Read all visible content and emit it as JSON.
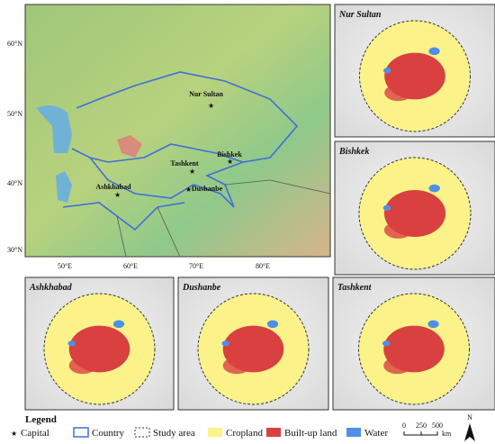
{
  "main_map": {
    "cities": [
      {
        "label": "Nur Sultan"
      },
      {
        "label": "Tashkent"
      },
      {
        "label": "Bishkek"
      },
      {
        "label": "Ashkhabad"
      },
      {
        "label": "Dushanbe"
      }
    ],
    "lat_labels": [
      "60°N",
      "50°N",
      "40°N",
      "30°N"
    ],
    "lon_labels": [
      "50°E",
      "60°E",
      "70°E",
      "80°E"
    ]
  },
  "panels": [
    {
      "title": "Nur Sultan"
    },
    {
      "title": "Bishkek"
    },
    {
      "title": "Ashkhabad"
    },
    {
      "title": "Dushanbe"
    },
    {
      "title": "Tashkent"
    }
  ],
  "legend": {
    "title": "Legend",
    "items": [
      "Capital",
      "Country",
      "Study area",
      "Cropland",
      "Built-up land",
      "Water"
    ]
  },
  "scale_bar": {
    "labels": [
      "0",
      "250",
      "500"
    ],
    "unit": "km"
  },
  "north": "N"
}
